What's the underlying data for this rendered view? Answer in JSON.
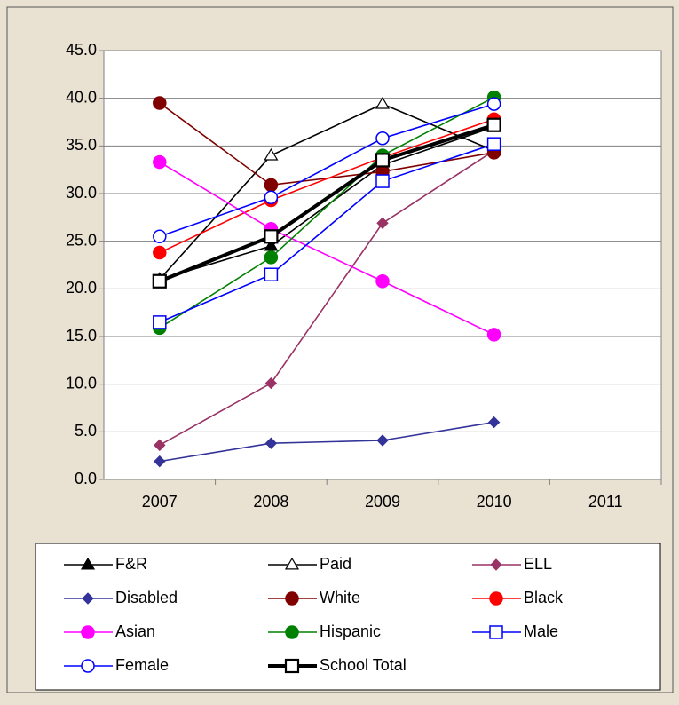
{
  "chart_data": {
    "type": "line",
    "categories": [
      "2007",
      "2008",
      "2009",
      "2010",
      "2011"
    ],
    "ylim": [
      0,
      45
    ],
    "yticks": [
      {
        "value": 0,
        "label": "0.0"
      },
      {
        "value": 5,
        "label": "5.0"
      },
      {
        "value": 10,
        "label": "10.0"
      },
      {
        "value": 15,
        "label": "15.0"
      },
      {
        "value": 20,
        "label": "20.0"
      },
      {
        "value": 25,
        "label": "25.0"
      },
      {
        "value": 30,
        "label": "30.0"
      },
      {
        "value": 35,
        "label": "35.0"
      },
      {
        "value": 40,
        "label": "40.0"
      },
      {
        "value": 45,
        "label": "45.0"
      }
    ],
    "grid": true,
    "legend": "bottom",
    "series": [
      {
        "name": "F&R",
        "color": "#000000",
        "marker": "triangle-filled",
        "values": [
          21.0,
          24.5,
          33.0,
          37.0,
          null
        ]
      },
      {
        "name": "Paid",
        "color": "#000000",
        "marker": "triangle-open",
        "values": [
          21.0,
          34.0,
          39.4,
          34.5,
          null
        ]
      },
      {
        "name": "ELL",
        "color": "#993366",
        "marker": "diamond",
        "values": [
          3.6,
          10.1,
          26.9,
          34.5,
          null
        ]
      },
      {
        "name": "Disabled",
        "color": "#333399",
        "marker": "diamond",
        "values": [
          1.9,
          3.8,
          4.1,
          6.0,
          null
        ]
      },
      {
        "name": "White",
        "color": "#800000",
        "marker": "circle-filled",
        "values": [
          39.5,
          30.9,
          32.3,
          34.3,
          null
        ]
      },
      {
        "name": "Black",
        "color": "#ff0000",
        "marker": "circle-filled",
        "values": [
          23.8,
          29.3,
          33.8,
          37.8,
          null
        ]
      },
      {
        "name": "Asian",
        "color": "#ff00ff",
        "marker": "circle-filled",
        "values": [
          33.3,
          26.3,
          20.8,
          15.2,
          null
        ]
      },
      {
        "name": "Hispanic",
        "color": "#008000",
        "marker": "circle-filled",
        "values": [
          15.9,
          23.3,
          34.0,
          40.1,
          null
        ]
      },
      {
        "name": "Male",
        "color": "#0000ff",
        "marker": "square-open",
        "values": [
          16.5,
          21.5,
          31.3,
          35.2,
          null
        ]
      },
      {
        "name": "Female",
        "color": "#0000ff",
        "marker": "circle-open",
        "values": [
          25.5,
          29.6,
          35.8,
          39.4,
          null
        ]
      },
      {
        "name": "School Total",
        "color": "#000000",
        "marker": "square-open-thick",
        "values": [
          20.8,
          25.5,
          33.5,
          37.2,
          null
        ]
      }
    ]
  }
}
